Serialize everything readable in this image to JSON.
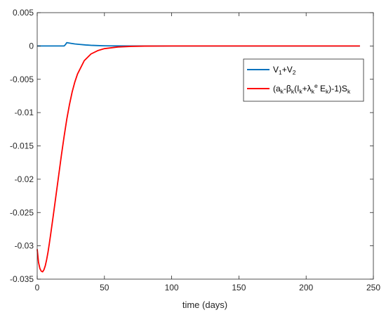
{
  "chart_data": {
    "type": "line",
    "xlabel": "time (days)",
    "ylabel": "",
    "xlim": [
      0,
      250
    ],
    "ylim": [
      -0.035,
      0.005
    ],
    "x_ticks": [
      "0",
      "50",
      "100",
      "150",
      "200",
      "250"
    ],
    "y_ticks": [
      "0.005",
      "0",
      "-0.005",
      "-0.01",
      "-0.015",
      "-0.02",
      "-0.025",
      "-0.03",
      "-0.035"
    ],
    "grid": false,
    "legend_position": "upper-right",
    "series": [
      {
        "name": "V1+V2",
        "color": "#0072BD",
        "x": [
          0,
          20,
          21,
          22,
          25,
          28,
          32,
          36,
          40,
          45,
          50,
          55,
          60,
          70,
          80,
          100,
          150,
          200,
          240
        ],
        "y": [
          0,
          0,
          0.0002,
          0.0005,
          0.0004,
          0.0003,
          0.00022,
          0.00015,
          0.0001,
          6e-05,
          3e-05,
          1.5e-05,
          7e-06,
          2e-06,
          0,
          0,
          0,
          0,
          0
        ]
      },
      {
        "name": "(ak-βk(Ik+λk^e Ek)-1)Sk",
        "color": "#FF0000",
        "x": [
          0,
          1,
          2,
          3,
          4,
          5,
          6,
          7,
          8,
          9,
          10,
          12,
          14,
          16,
          18,
          20,
          22,
          24,
          26,
          28,
          30,
          35,
          40,
          45,
          50,
          60,
          70,
          80,
          90,
          100,
          150,
          200,
          240
        ],
        "y": [
          -0.0305,
          -0.0325,
          -0.0334,
          -0.0338,
          -0.0339,
          -0.0336,
          -0.033,
          -0.0321,
          -0.031,
          -0.0297,
          -0.0283,
          -0.0254,
          -0.0224,
          -0.0194,
          -0.0164,
          -0.0136,
          -0.011,
          -0.0088,
          -0.0069,
          -0.0054,
          -0.0042,
          -0.0022,
          -0.0012,
          -0.0007,
          -0.0004,
          -0.00015,
          -6e-05,
          -2e-05,
          -1e-05,
          0,
          0,
          0,
          0
        ]
      }
    ]
  }
}
